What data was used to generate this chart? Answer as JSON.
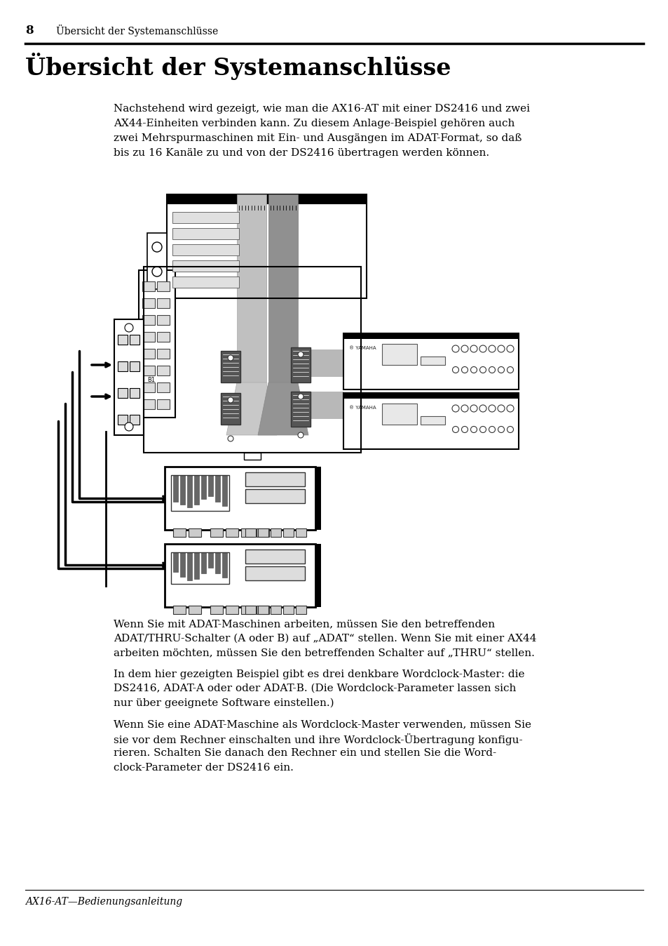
{
  "page_number": "8",
  "header_text": "Übersicht der Systemanschlüsse",
  "title": "Übersicht der Systemanschlüsse",
  "intro_paragraph": "Nachstehend wird gezeigt, wie man die AX16-AT mit einer DS2416 und zwei\nAX44-Einheiten verbinden kann. Zu diesem Anlage-Beispiel gehören auch\nzwei Mehrspurmaschinen mit Ein- und Ausgängen im ADAT-Format, so daß\nbis zu 16 Kanäle zu und von der DS2416 übertragen werden können.",
  "para1": "Wenn Sie mit ADAT-Maschinen arbeiten, müssen Sie den betreffenden\nADAT/THRU-Schalter (A oder B) auf „ADAT“ stellen. Wenn Sie mit einer AX44\narbeiten möchten, müssen Sie den betreffenden Schalter auf „THRU“ stellen.",
  "para2": "In dem hier gezeigten Beispiel gibt es drei denkbare Wordclock-Master: die\nDS2416, ADAT-A oder oder ADAT-B. (Die Wordclock-Parameter lassen sich\nnur über geeignete Software einstellen.)",
  "para3": "Wenn Sie eine ADAT-Maschine als Wordclock-Master verwenden, müssen Sie\nsie vor dem Rechner einschalten und ihre Wordclock-Übertragung konfigu-\nrieren. Schalten Sie danach den Rechner ein und stellen Sie die Word-\nclock-Parameter der DS2416 ein.",
  "footer_text": "AX16-AT—Bedienungsanleitung",
  "bg_color": "#ffffff",
  "text_color": "#000000"
}
